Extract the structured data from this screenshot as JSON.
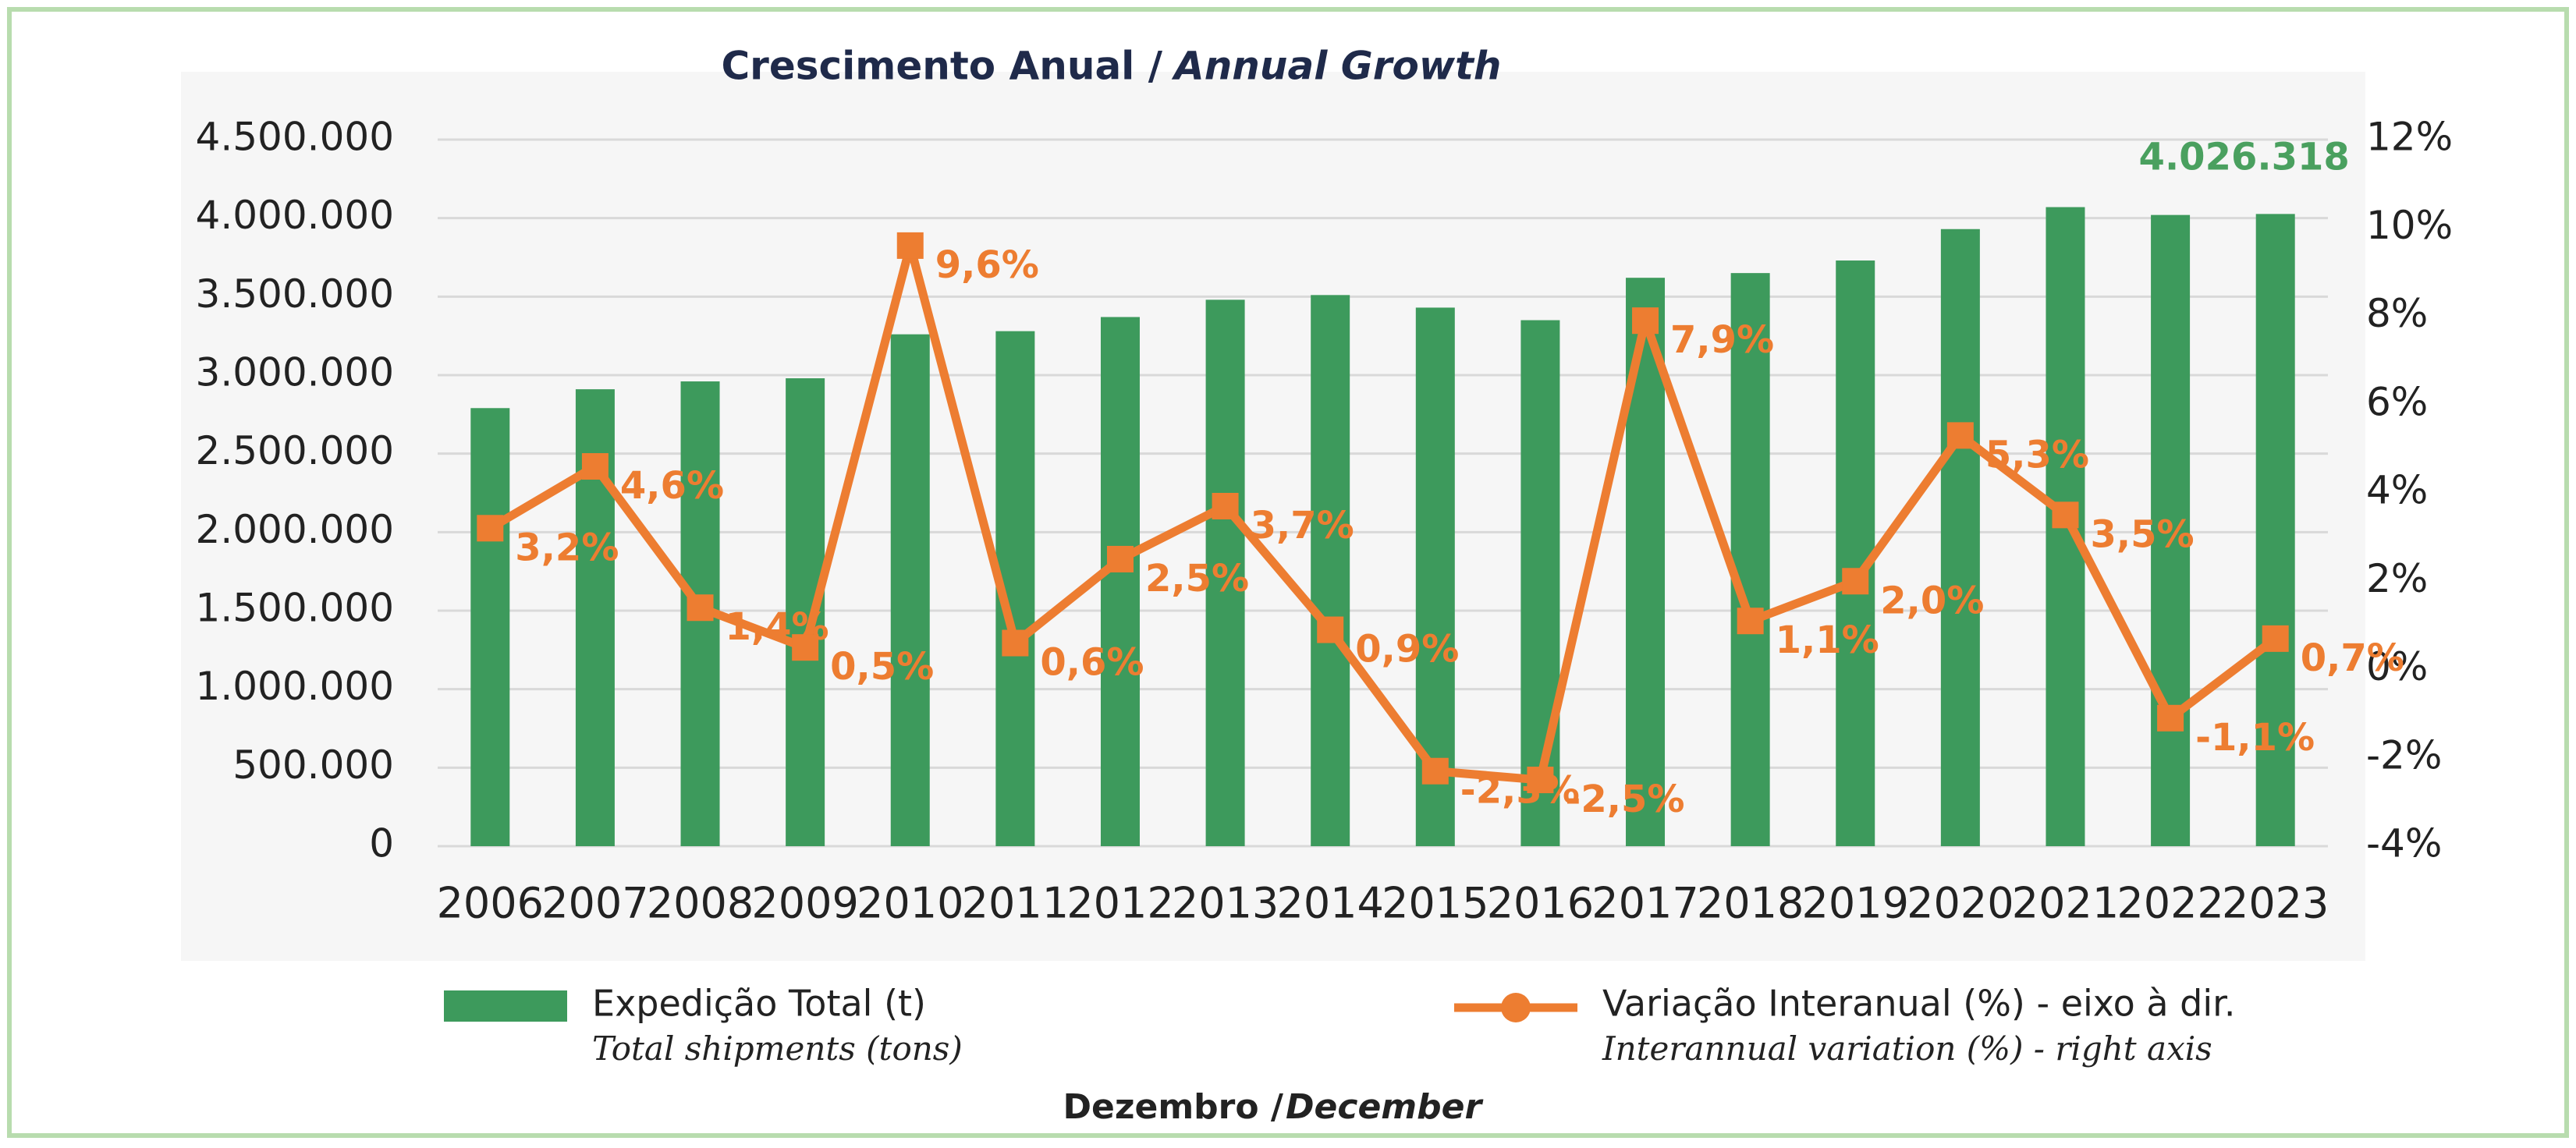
{
  "chart_data": {
    "type": "bar_line",
    "title": "Crescimento Anual /",
    "title_en": "Annual Growth",
    "x_label": "Dezembro /",
    "x_label_en": "December",
    "categories": [
      "2006",
      "2007",
      "2008",
      "2009",
      "2010",
      "2011",
      "2012",
      "2013",
      "2014",
      "2015",
      "2016",
      "2017",
      "2018",
      "2019",
      "2020",
      "2021",
      "2022",
      "2023"
    ],
    "series": [
      {
        "name": "Expedição Total (t)",
        "legend_subtitle": "Total shipments (tons)",
        "type": "bar",
        "color": "#3d9a5c",
        "label_color": "#4aa05f",
        "values": [
          2790000,
          2910000,
          2960000,
          2980000,
          3260000,
          3280000,
          3370000,
          3480000,
          3510000,
          3430000,
          3350000,
          3620000,
          3650000,
          3730000,
          3930000,
          4070000,
          4020000,
          4026318
        ],
        "value_labels": [
          null,
          null,
          null,
          null,
          null,
          null,
          null,
          null,
          null,
          null,
          null,
          null,
          null,
          null,
          null,
          null,
          null,
          "4.026.318"
        ]
      },
      {
        "name": "Variação Interanual (%) - eixo à dir.",
        "legend_subtitle": "Interannual variation (%) - right axis",
        "type": "line",
        "axis": "y2",
        "color": "#ed7d31",
        "values": [
          3.2,
          4.6,
          1.4,
          0.5,
          9.6,
          0.6,
          2.5,
          3.7,
          0.9,
          -2.3,
          -2.5,
          7.9,
          1.1,
          2.0,
          5.3,
          3.5,
          -1.1,
          0.7
        ],
        "value_labels": [
          "3,2%",
          "4,6%",
          "1,4%",
          "0,5%",
          "9,6%",
          "0,6%",
          "2,5%",
          "3,7%",
          "0,9%",
          "-2,3%",
          "-2,5%",
          "7,9%",
          "1,1%",
          "2,0%",
          "5,3%",
          "3,5%",
          "-1,1%",
          "0,7%"
        ]
      }
    ],
    "ylim": [
      0,
      4500000
    ],
    "yticks": [
      {
        "value": 0,
        "label": "0"
      },
      {
        "value": 500000,
        "label": "500.000"
      },
      {
        "value": 1000000,
        "label": "1.000.000"
      },
      {
        "value": 1500000,
        "label": "1.500.000"
      },
      {
        "value": 2000000,
        "label": "2.000.000"
      },
      {
        "value": 2500000,
        "label": "2.500.000"
      },
      {
        "value": 3000000,
        "label": "3.000.000"
      },
      {
        "value": 3500000,
        "label": "3.500.000"
      },
      {
        "value": 4000000,
        "label": "4.000.000"
      },
      {
        "value": 4500000,
        "label": "4.500.000"
      }
    ],
    "y2lim": [
      -4,
      12
    ],
    "y2ticks": [
      {
        "value": -4,
        "label": "-4%"
      },
      {
        "value": -2,
        "label": "-2%"
      },
      {
        "value": 0,
        "label": "0%"
      },
      {
        "value": 2,
        "label": "2%"
      },
      {
        "value": 4,
        "label": "4%"
      },
      {
        "value": 6,
        "label": "6%"
      },
      {
        "value": 8,
        "label": "8%"
      },
      {
        "value": 10,
        "label": "10%"
      },
      {
        "value": 12,
        "label": "12%"
      }
    ],
    "grid": true,
    "legend": "bottom"
  }
}
